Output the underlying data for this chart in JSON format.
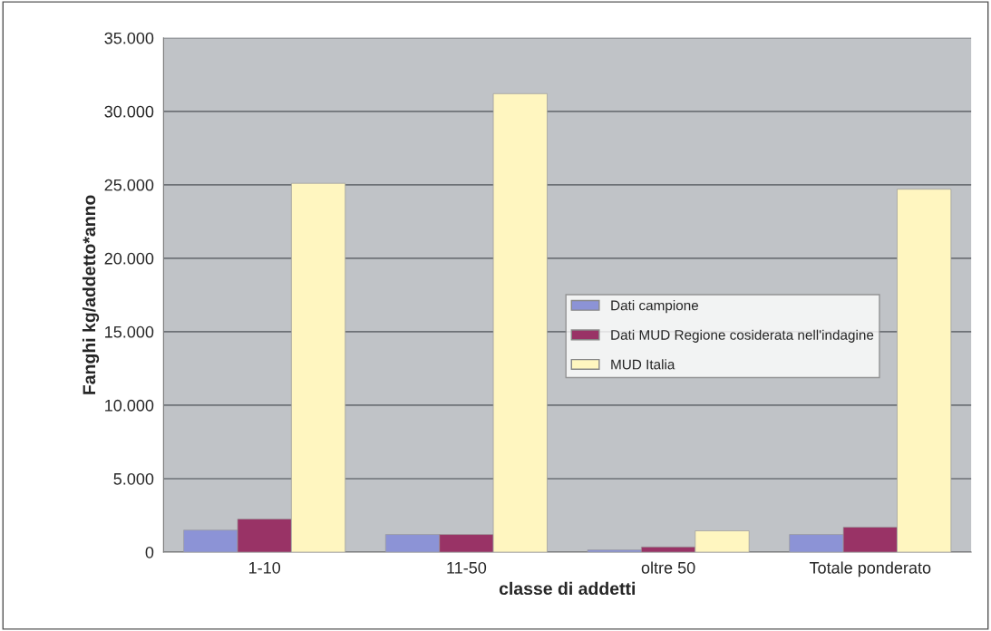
{
  "chart_data": {
    "type": "bar",
    "xlabel": "classe di addetti",
    "ylabel": "Fanghi kg/addetto*anno",
    "categories": [
      "1-10",
      "11-50",
      "oltre 50",
      "Totale ponderato"
    ],
    "series": [
      {
        "name": "Dati campione",
        "color": "#8c93d6",
        "values": [
          1500,
          1200,
          150,
          1200
        ]
      },
      {
        "name": "Dati MUD Regione cosiderata nell'indagine",
        "color": "#993366",
        "values": [
          2250,
          1200,
          350,
          1700
        ]
      },
      {
        "name": "MUD Italia",
        "color": "#fff6c0",
        "values": [
          25100,
          31200,
          1450,
          24700
        ]
      }
    ],
    "ylim": [
      0,
      35000
    ],
    "yticks": [
      {
        "value": 0,
        "label": "0"
      },
      {
        "value": 5000,
        "label": "5.000"
      },
      {
        "value": 10000,
        "label": "10.000"
      },
      {
        "value": 15000,
        "label": "15.000"
      },
      {
        "value": 20000,
        "label": "20.000"
      },
      {
        "value": 25000,
        "label": "25.000"
      },
      {
        "value": 30000,
        "label": "30.000"
      },
      {
        "value": 35000,
        "label": "35.000"
      }
    ],
    "grid": "y",
    "legend": "right"
  }
}
